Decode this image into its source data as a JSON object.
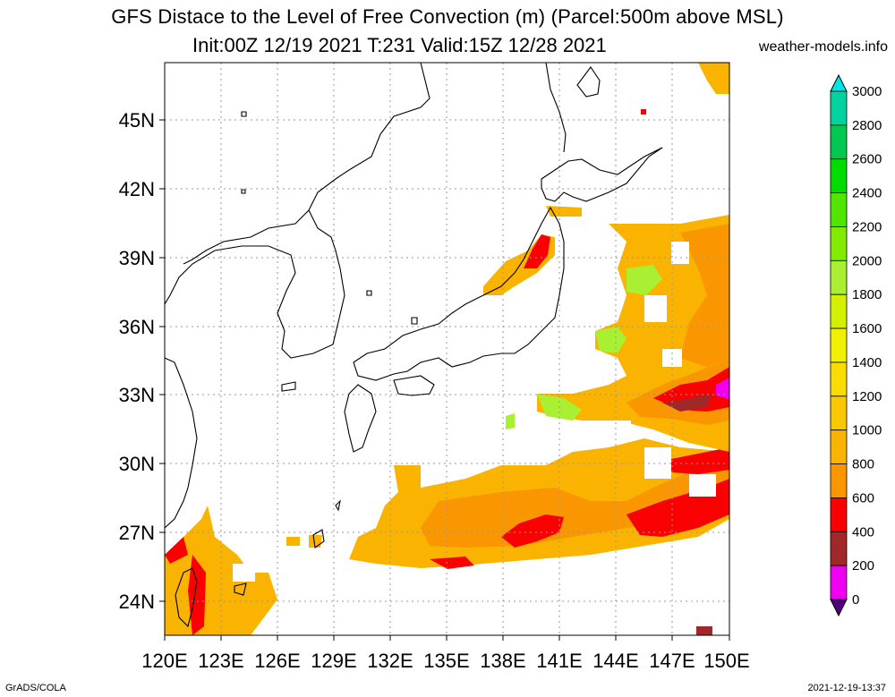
{
  "header": {
    "title": "GFS Distace to the Level of Free Convection (m) (Parcel:500m above MSL)",
    "subtitle": "Init:00Z 12/19 2021 T:231 Valid:15Z 12/28 2021",
    "site": "weather-models.info"
  },
  "footer": {
    "left": "GrADS/COLA",
    "right": "2021-12-19-13:37"
  },
  "map": {
    "lon_labels": [
      "120E",
      "123E",
      "126E",
      "129E",
      "132E",
      "135E",
      "138E",
      "141E",
      "144E",
      "147E",
      "150E"
    ],
    "lat_labels": [
      "45N",
      "42N",
      "39N",
      "36N",
      "33N",
      "30N",
      "27N",
      "24N"
    ]
  },
  "colorbar": {
    "labels": [
      "3000",
      "2800",
      "2600",
      "2400",
      "2200",
      "2000",
      "1800",
      "1600",
      "1400",
      "1200",
      "1000",
      "800",
      "600",
      "400",
      "200",
      "0"
    ],
    "colors": [
      "#00e6e6",
      "#00d2a0",
      "#00c850",
      "#00dc00",
      "#50e600",
      "#82eb00",
      "#aaf032",
      "#d2f000",
      "#f0f000",
      "#fadc00",
      "#fac800",
      "#fab400",
      "#fa9600",
      "#fa0000",
      "#a02828",
      "#f000f0",
      "#500078"
    ]
  }
}
